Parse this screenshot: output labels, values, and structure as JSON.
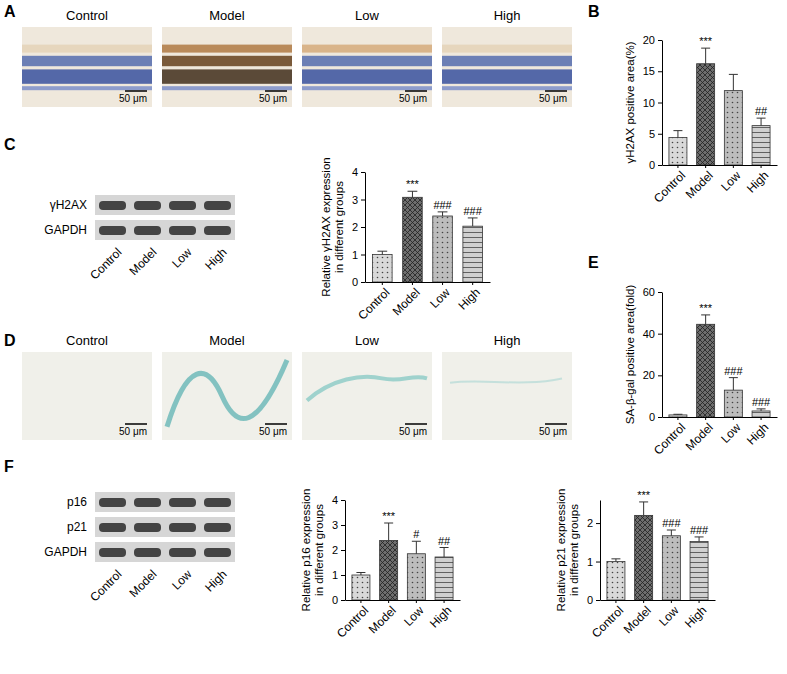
{
  "chart_data": [
    {
      "type": "bar",
      "y_label": "γH2AX positive area(%)",
      "categories": [
        "Control",
        "Model",
        "Low",
        "High"
      ],
      "values": [
        4.4,
        16.2,
        11.9,
        6.3
      ],
      "errors": [
        1.1,
        2.5,
        2.6,
        1.2
      ],
      "annotations": [
        null,
        "***",
        null,
        "##"
      ],
      "colors": [
        "#d9d9d9",
        "#6e6e6e",
        "#bdbdbd",
        "#d0d0d0"
      ],
      "ylim": [
        0,
        20
      ],
      "yticks": [
        0,
        5,
        10,
        15,
        20
      ]
    },
    {
      "type": "bar",
      "y_label": "Relative γH2AX expression in different groups",
      "categories": [
        "Control",
        "Model",
        "Low",
        "High"
      ],
      "values": [
        1.0,
        3.08,
        2.4,
        2.03
      ],
      "errors": [
        0.12,
        0.22,
        0.15,
        0.3
      ],
      "annotations": [
        null,
        "***",
        "###",
        "###"
      ],
      "colors": [
        "#d9d9d9",
        "#6e6e6e",
        "#bdbdbd",
        "#d0d0d0"
      ],
      "ylim": [
        0,
        4
      ],
      "yticks": [
        0,
        1,
        2,
        3,
        4
      ]
    },
    {
      "type": "bar",
      "y_label": "SA-β-gal positive area(fold)",
      "categories": [
        "Control",
        "Model",
        "Low",
        "High"
      ],
      "values": [
        1.0,
        44.5,
        12.9,
        2.9
      ],
      "errors": [
        0.3,
        4.5,
        6.0,
        1.0
      ],
      "annotations": [
        null,
        "***",
        "###",
        "###"
      ],
      "colors": [
        "#d9d9d9",
        "#6e6e6e",
        "#bdbdbd",
        "#d0d0d0"
      ],
      "ylim": [
        0,
        60
      ],
      "yticks": [
        0,
        20,
        40,
        60
      ]
    },
    {
      "type": "bar",
      "y_label": "Relative p16 expression in different groups",
      "categories": [
        "Control",
        "Model",
        "Low",
        "High"
      ],
      "values": [
        1.0,
        2.38,
        1.85,
        1.72
      ],
      "errors": [
        0.1,
        0.7,
        0.5,
        0.38
      ],
      "annotations": [
        null,
        "***",
        "#",
        "##"
      ],
      "colors": [
        "#d9d9d9",
        "#6e6e6e",
        "#bdbdbd",
        "#d0d0d0"
      ],
      "ylim": [
        0,
        4
      ],
      "yticks": [
        0,
        1,
        2,
        3,
        4
      ]
    },
    {
      "type": "bar",
      "y_label": "Relative p21 expression in different groups",
      "categories": [
        "Control",
        "Model",
        "Low",
        "High"
      ],
      "values": [
        1.0,
        2.2,
        1.67,
        1.52
      ],
      "errors": [
        0.07,
        0.35,
        0.15,
        0.12
      ],
      "annotations": [
        null,
        "***",
        "###",
        "###"
      ],
      "colors": [
        "#d9d9d9",
        "#6e6e6e",
        "#bdbdbd",
        "#d0d0d0"
      ],
      "ylim": [
        0,
        2.6
      ],
      "yticks": [
        0,
        1,
        2
      ]
    }
  ],
  "panel_letters": [
    "A",
    "B",
    "C",
    "D",
    "E",
    "F"
  ],
  "micrographs": [
    {
      "labels": [
        "Control",
        "Model",
        "Low",
        "High"
      ],
      "scale_bar": "50 μm"
    },
    {
      "labels": [
        "Control",
        "Model",
        "Low",
        "High"
      ],
      "scale_bar": "50 μm"
    }
  ],
  "western_blots": [
    {
      "rows": [
        "γH2AX",
        "GAPDH"
      ],
      "lanes": [
        "Control",
        "Model",
        "Low",
        "High"
      ]
    },
    {
      "rows": [
        "p16",
        "p21",
        "GAPDH"
      ],
      "lanes": [
        "Control",
        "Model",
        "Low",
        "High"
      ]
    }
  ]
}
